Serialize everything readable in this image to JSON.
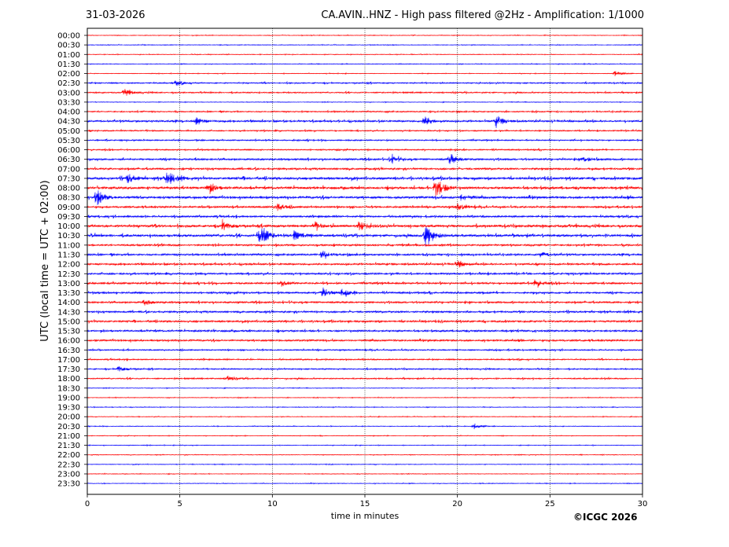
{
  "header": {
    "date": "31-03-2026",
    "title": "CA.AVIN..HNZ - High pass filtered @2Hz - Amplification: 1/1000"
  },
  "footer": {
    "copyright": "©ICGC 2026"
  },
  "colors": {
    "red_trace": "#ff0000",
    "blue_trace": "#0000ff",
    "grid": "#000000",
    "background": "#ffffff"
  },
  "chart_data": {
    "type": "line",
    "title": "CA.AVIN..HNZ - High pass filtered @2Hz - Amplification: 1/1000",
    "xlabel": "time in minutes",
    "ylabel": "UTC (local time = UTC + 02:00)",
    "xlim": [
      0,
      30
    ],
    "xticks": [
      0,
      5,
      10,
      15,
      20,
      25,
      30
    ],
    "vertical_grid": true,
    "row_labels": [
      "00:00",
      "00:30",
      "01:00",
      "01:30",
      "02:00",
      "02:30",
      "03:00",
      "03:30",
      "04:00",
      "04:30",
      "05:00",
      "05:30",
      "06:00",
      "06:30",
      "07:00",
      "07:30",
      "08:00",
      "08:30",
      "09:00",
      "09:30",
      "10:00",
      "10:30",
      "11:00",
      "11:30",
      "12:00",
      "12:30",
      "13:00",
      "13:30",
      "14:00",
      "14:30",
      "15:00",
      "15:30",
      "16:00",
      "16:30",
      "17:00",
      "17:30",
      "18:00",
      "18:30",
      "19:00",
      "19:30",
      "20:00",
      "20:30",
      "21:00",
      "21:30",
      "22:00",
      "22:30",
      "23:00",
      "23:30"
    ],
    "row_colors": [
      "red",
      "blue"
    ],
    "noise_level": [
      1,
      1,
      1,
      1,
      1,
      2,
      2,
      1,
      2,
      3,
      2,
      2,
      2,
      3,
      3,
      4,
      4,
      4,
      3,
      3,
      4,
      4,
      3,
      3,
      3,
      3,
      3,
      3,
      3,
      3,
      3,
      3,
      3,
      2,
      2,
      2,
      2,
      1,
      1,
      1,
      1,
      1,
      1,
      1,
      1,
      1,
      1,
      1
    ],
    "events": [
      {
        "row": "02:00",
        "minute": 28.5,
        "amplitude": 0.3
      },
      {
        "row": "02:30",
        "minute": 4.8,
        "amplitude": 0.3
      },
      {
        "row": "03:00",
        "minute": 2.0,
        "amplitude": 0.4
      },
      {
        "row": "04:30",
        "minute": 5.9,
        "amplitude": 0.4
      },
      {
        "row": "04:30",
        "minute": 18.2,
        "amplitude": 0.6
      },
      {
        "row": "04:30",
        "minute": 22.1,
        "amplitude": 0.7
      },
      {
        "row": "06:30",
        "minute": 16.4,
        "amplitude": 0.5
      },
      {
        "row": "06:30",
        "minute": 19.6,
        "amplitude": 0.6
      },
      {
        "row": "06:30",
        "minute": 26.8,
        "amplitude": 0.3
      },
      {
        "row": "07:30",
        "minute": 2.2,
        "amplitude": 0.5
      },
      {
        "row": "07:30",
        "minute": 4.3,
        "amplitude": 0.9
      },
      {
        "row": "08:00",
        "minute": 6.5,
        "amplitude": 0.6
      },
      {
        "row": "08:00",
        "minute": 18.8,
        "amplitude": 1.4
      },
      {
        "row": "08:30",
        "minute": 0.5,
        "amplitude": 0.9
      },
      {
        "row": "08:30",
        "minute": 20.2,
        "amplitude": 0.4
      },
      {
        "row": "09:00",
        "minute": 10.3,
        "amplitude": 0.4
      },
      {
        "row": "09:00",
        "minute": 20.0,
        "amplitude": 0.4
      },
      {
        "row": "10:00",
        "minute": 7.3,
        "amplitude": 0.5
      },
      {
        "row": "10:00",
        "minute": 12.3,
        "amplitude": 0.4
      },
      {
        "row": "10:00",
        "minute": 14.7,
        "amplitude": 0.5
      },
      {
        "row": "10:30",
        "minute": 9.3,
        "amplitude": 1.6
      },
      {
        "row": "10:30",
        "minute": 11.2,
        "amplitude": 0.4
      },
      {
        "row": "10:30",
        "minute": 18.3,
        "amplitude": 1.4
      },
      {
        "row": "11:30",
        "minute": 12.7,
        "amplitude": 0.4
      },
      {
        "row": "11:30",
        "minute": 24.5,
        "amplitude": 0.3
      },
      {
        "row": "12:00",
        "minute": 20.0,
        "amplitude": 0.4
      },
      {
        "row": "13:00",
        "minute": 10.5,
        "amplitude": 0.3
      },
      {
        "row": "13:00",
        "minute": 24.2,
        "amplitude": 0.4
      },
      {
        "row": "13:30",
        "minute": 12.7,
        "amplitude": 0.6
      },
      {
        "row": "13:30",
        "minute": 13.8,
        "amplitude": 0.4
      },
      {
        "row": "14:00",
        "minute": 3.1,
        "amplitude": 0.3
      },
      {
        "row": "17:30",
        "minute": 1.7,
        "amplitude": 0.3
      },
      {
        "row": "18:00",
        "minute": 7.6,
        "amplitude": 0.3
      },
      {
        "row": "20:30",
        "minute": 20.9,
        "amplitude": 0.3
      }
    ]
  }
}
